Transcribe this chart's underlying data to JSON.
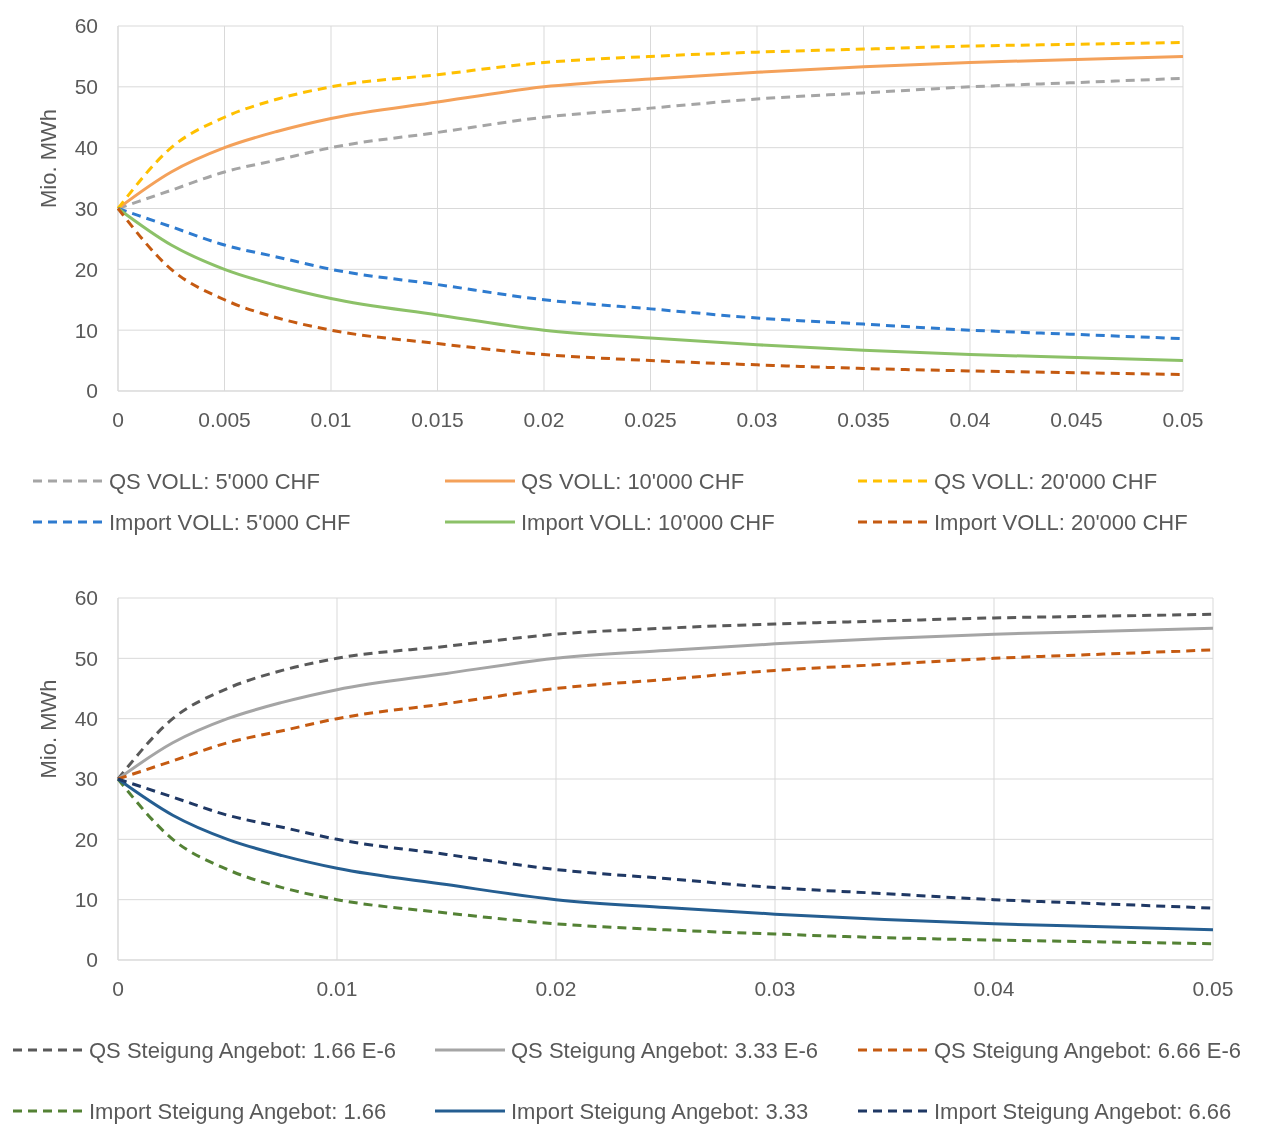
{
  "chart_data": [
    {
      "type": "line",
      "ylabel": "Mio. MWh",
      "x": [
        0,
        0.0025,
        0.005,
        0.0075,
        0.01,
        0.015,
        0.02,
        0.025,
        0.03,
        0.035,
        0.04,
        0.045,
        0.05
      ],
      "xlim": [
        0,
        0.05
      ],
      "xticks": [
        0,
        0.005,
        0.01,
        0.015,
        0.02,
        0.025,
        0.03,
        0.035,
        0.04,
        0.045,
        0.05
      ],
      "ylim": [
        0,
        60
      ],
      "yticks": [
        0,
        10,
        20,
        30,
        40,
        50,
        60
      ],
      "grid": true,
      "legend": "bottom",
      "marker": "none",
      "series": [
        {
          "name": "QS VOLL: 5'000 CHF",
          "color": "#a5a5a5",
          "line_style": "dashed",
          "values": [
            30,
            33,
            36,
            38,
            40,
            42.5,
            45,
            46.5,
            48,
            49,
            50,
            50.7,
            51.4
          ]
        },
        {
          "name": "QS VOLL: 10'000 CHF",
          "color": "#f4a15a",
          "line_style": "solid",
          "values": [
            30,
            36,
            40,
            42.7,
            44.8,
            47.5,
            50,
            51.3,
            52.4,
            53.3,
            54,
            54.5,
            55
          ]
        },
        {
          "name": "QS VOLL: 20'000 CHF",
          "color": "#ffc000",
          "line_style": "dashed",
          "values": [
            30,
            40,
            45,
            48,
            50,
            52,
            54,
            55,
            55.7,
            56.2,
            56.7,
            57,
            57.3
          ]
        },
        {
          "name": "Import VOLL: 5'000 CHF",
          "color": "#2e7bcf",
          "line_style": "dashed",
          "values": [
            30,
            27,
            24,
            22,
            20,
            17.5,
            15,
            13.5,
            12,
            11,
            10,
            9.3,
            8.6
          ]
        },
        {
          "name": "Import VOLL: 10'000 CHF",
          "color": "#8cc168",
          "line_style": "solid",
          "values": [
            30,
            24,
            20,
            17.3,
            15.2,
            12.5,
            10,
            8.7,
            7.6,
            6.7,
            6,
            5.5,
            5
          ]
        },
        {
          "name": "Import VOLL: 20'000 CHF",
          "color": "#c55a11",
          "line_style": "dashed",
          "values": [
            30,
            20,
            15,
            12,
            10,
            7.8,
            6,
            5,
            4.3,
            3.7,
            3.3,
            3,
            2.7
          ]
        }
      ]
    },
    {
      "type": "line",
      "ylabel": "Mio. MWh",
      "x": [
        0,
        0.0025,
        0.005,
        0.0075,
        0.01,
        0.015,
        0.02,
        0.025,
        0.03,
        0.035,
        0.04,
        0.045,
        0.05
      ],
      "xlim": [
        0,
        0.05
      ],
      "xticks": [
        0,
        0.01,
        0.02,
        0.03,
        0.04,
        0.05
      ],
      "ylim": [
        0,
        60
      ],
      "yticks": [
        0,
        10,
        20,
        30,
        40,
        50,
        60
      ],
      "grid": true,
      "legend": "bottom",
      "marker": "none",
      "series": [
        {
          "name": "QS Steigung Angebot: 1.66 E-6",
          "color": "#595959",
          "line_style": "dashed",
          "values": [
            30,
            40,
            45,
            48,
            50,
            52,
            54,
            55,
            55.7,
            56.2,
            56.7,
            57,
            57.3
          ]
        },
        {
          "name": "QS Steigung Angebot: 3.33 E-6",
          "color": "#a5a5a5",
          "line_style": "solid",
          "values": [
            30,
            36,
            40,
            42.7,
            44.8,
            47.5,
            50,
            51.3,
            52.4,
            53.3,
            54,
            54.5,
            55
          ]
        },
        {
          "name": "QS Steigung Angebot: 6.66 E-6",
          "color": "#c55a11",
          "line_style": "dashed",
          "values": [
            30,
            33,
            36,
            38,
            40,
            42.5,
            45,
            46.5,
            48,
            49,
            50,
            50.7,
            51.4
          ]
        },
        {
          "name": "Import Steigung Angebot: 1.66",
          "color": "#548235",
          "line_style": "dashed",
          "values": [
            30,
            20,
            15,
            12,
            10,
            7.8,
            6,
            5,
            4.3,
            3.7,
            3.3,
            3,
            2.7
          ]
        },
        {
          "name": "Import Steigung Angebot: 3.33",
          "color": "#255e91",
          "line_style": "solid",
          "values": [
            30,
            24,
            20,
            17.3,
            15.2,
            12.5,
            10,
            8.7,
            7.6,
            6.7,
            6,
            5.5,
            5
          ]
        },
        {
          "name": "Import Steigung Angebot: 6.66",
          "color": "#1f3864",
          "line_style": "dashed",
          "values": [
            30,
            27,
            24,
            22,
            20,
            17.5,
            15,
            13.5,
            12,
            11,
            10,
            9.3,
            8.6
          ]
        }
      ]
    }
  ]
}
